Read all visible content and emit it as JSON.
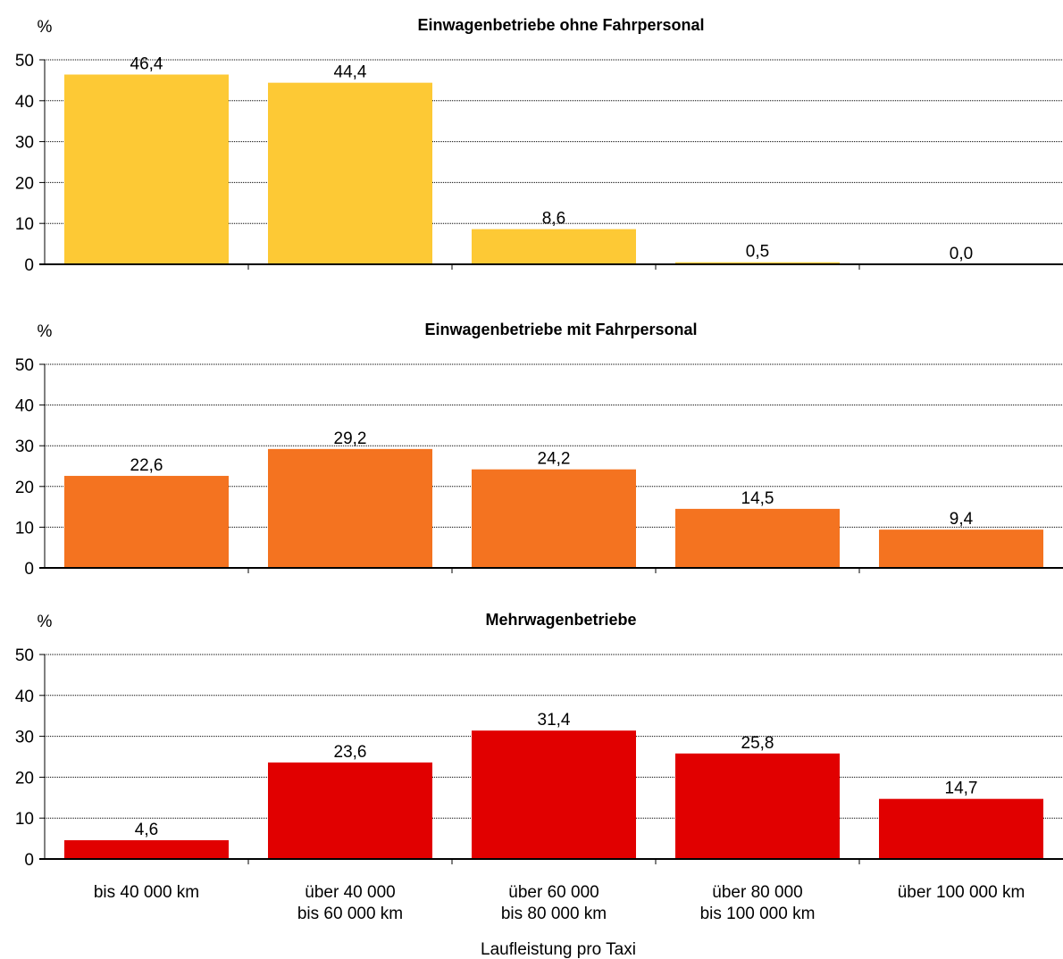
{
  "chart_data": [
    {
      "type": "bar",
      "title": "Einwagenbetriebe ohne Fahrpersonal",
      "y_label": "%",
      "values": [
        46.4,
        44.4,
        8.6,
        0.5,
        0.0
      ],
      "value_labels": [
        "46,4",
        "44,4",
        "8,6",
        "0,5",
        "0,0"
      ],
      "color": "#fdc935",
      "ylim": [
        0,
        50
      ],
      "yticks": [
        0,
        10,
        20,
        30,
        40,
        50
      ],
      "grid": true
    },
    {
      "type": "bar",
      "title": "Einwagenbetriebe mit Fahrpersonal",
      "y_label": "%",
      "values": [
        22.6,
        29.2,
        24.2,
        14.5,
        9.4
      ],
      "value_labels": [
        "22,6",
        "29,2",
        "24,2",
        "14,5",
        "9,4"
      ],
      "color": "#f47320",
      "ylim": [
        0,
        50
      ],
      "yticks": [
        0,
        10,
        20,
        30,
        40,
        50
      ],
      "grid": true
    },
    {
      "type": "bar",
      "title": "Mehrwagenbetriebe",
      "y_label": "%",
      "x_label": "Laufleistung pro Taxi",
      "categories": [
        [
          "bis 40 000 km"
        ],
        [
          "über 40 000",
          "bis 60 000 km"
        ],
        [
          "über 60 000",
          "bis 80 000 km"
        ],
        [
          "über 80 000",
          "bis 100 000 km"
        ],
        [
          "über 100 000 km"
        ]
      ],
      "values": [
        4.6,
        23.6,
        31.4,
        25.8,
        14.7
      ],
      "value_labels": [
        "4,6",
        "23,6",
        "31,4",
        "25,8",
        "14,7"
      ],
      "color": "#e10000",
      "ylim": [
        0,
        50
      ],
      "yticks": [
        0,
        10,
        20,
        30,
        40,
        50
      ],
      "grid": true
    }
  ]
}
